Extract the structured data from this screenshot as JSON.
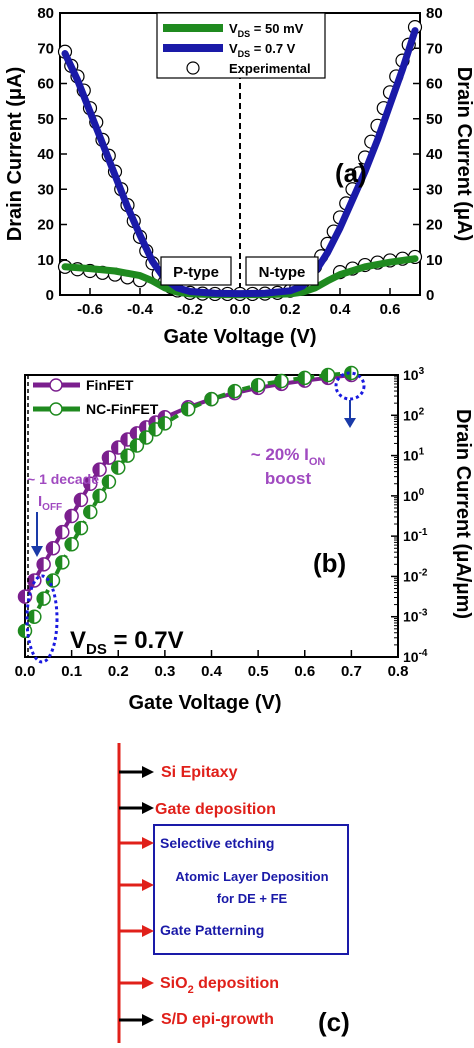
{
  "chart_data": [
    {
      "type": "line",
      "panel_label": "(a)",
      "xlabel": "Gate Voltage (V)",
      "ylabel_left": "Drain Current (μA)",
      "ylabel_right": "Drain Current (μA)",
      "xlim": [
        -0.72,
        0.72
      ],
      "ylim": [
        0,
        80
      ],
      "x_ticks": [
        -0.6,
        -0.4,
        -0.2,
        0.0,
        0.2,
        0.4,
        0.6
      ],
      "x_tick_labels": [
        "-0.6",
        "-0.4",
        "-0.2",
        "0.0",
        "0.2",
        "0.4",
        "0.6"
      ],
      "y_ticks": [
        0,
        10,
        20,
        30,
        40,
        50,
        60,
        70,
        80
      ],
      "y_tick_labels": [
        "0",
        "10",
        "20",
        "30",
        "40",
        "50",
        "60",
        "70",
        "80"
      ],
      "grid": false,
      "legend_position": "top-center",
      "legend": {
        "vds50_main": "V",
        "vds50_sub": "DS",
        "vds50_rest": " = 50 mV",
        "vds07_main": "V",
        "vds07_sub": "DS",
        "vds07_rest": " = 0.7 V",
        "exp": "Experimental"
      },
      "region_labels": {
        "p": "P-type",
        "n": "N-type"
      },
      "colors": {
        "vds50": "#1f8a1f",
        "vds07": "#1a1aa8"
      },
      "series": [
        {
          "name": "VDS = 50 mV",
          "x": [
            -0.7,
            -0.6,
            -0.5,
            -0.4,
            -0.35,
            -0.3,
            -0.25,
            -0.2,
            -0.1,
            0.0,
            0.1,
            0.2,
            0.25,
            0.3,
            0.35,
            0.4,
            0.5,
            0.6,
            0.7
          ],
          "y": [
            8.0,
            7.5,
            6.8,
            5.5,
            4.0,
            2.0,
            0.8,
            0.3,
            0.1,
            0.05,
            0.1,
            0.3,
            0.8,
            2.0,
            4.0,
            5.8,
            8.0,
            9.3,
            10.3
          ]
        },
        {
          "name": "VDS = 0.7 V",
          "x": [
            -0.7,
            -0.65,
            -0.6,
            -0.55,
            -0.5,
            -0.45,
            -0.4,
            -0.35,
            -0.3,
            -0.25,
            -0.2,
            -0.1,
            0.0,
            0.1,
            0.2,
            0.25,
            0.3,
            0.35,
            0.4,
            0.45,
            0.5,
            0.55,
            0.6,
            0.65,
            0.7
          ],
          "y": [
            68.5,
            61,
            52,
            43,
            34,
            25,
            17,
            9.5,
            4.5,
            2,
            1,
            0.5,
            0.4,
            0.5,
            1.2,
            2.5,
            6.5,
            12,
            19,
            27,
            35,
            44,
            54,
            64,
            75
          ]
        },
        {
          "name": "Experimental",
          "x": [
            -0.7,
            -0.675,
            -0.65,
            -0.625,
            -0.6,
            -0.575,
            -0.55,
            -0.525,
            -0.5,
            -0.475,
            -0.45,
            -0.425,
            -0.4,
            -0.375,
            -0.35,
            -0.325,
            -0.3,
            -0.275,
            -0.25,
            -0.2,
            -0.15,
            -0.1,
            -0.05,
            0.0,
            0.05,
            0.1,
            0.15,
            0.2,
            0.225,
            0.25,
            0.275,
            0.3,
            0.325,
            0.35,
            0.375,
            0.4,
            0.425,
            0.45,
            0.475,
            0.5,
            0.525,
            0.55,
            0.575,
            0.6,
            0.625,
            0.65,
            0.675,
            0.7,
            -0.7,
            -0.65,
            -0.6,
            -0.55,
            -0.5,
            -0.45,
            -0.4,
            0.4,
            0.45,
            0.5,
            0.55,
            0.6,
            0.65,
            0.7
          ],
          "y": [
            69,
            65,
            62,
            58,
            53,
            49,
            44,
            39.5,
            35,
            30,
            25.5,
            21,
            16.5,
            12.5,
            9,
            6,
            3.8,
            2.2,
            1.3,
            0.6,
            0.4,
            0.3,
            0.3,
            0.3,
            0.3,
            0.4,
            0.6,
            1.2,
            2,
            3.5,
            5.5,
            8,
            11,
            14.5,
            18,
            22,
            26,
            30,
            34.5,
            39,
            43.5,
            48,
            53,
            57.5,
            62,
            66.5,
            71,
            76,
            8,
            7.3,
            6.8,
            6.3,
            5.8,
            5.0,
            4.2,
            6.5,
            7.5,
            8.5,
            9.2,
            9.8,
            10.3,
            10.8
          ]
        }
      ]
    },
    {
      "type": "line",
      "panel_label": "(b)",
      "xlabel": "Gate Voltage (V)",
      "ylabel_right": "Drain Current (μA/μm)",
      "xlim": [
        0.0,
        0.8
      ],
      "ylim_log10": [
        -4,
        3
      ],
      "log_scale_y": true,
      "x_ticks": [
        0.0,
        0.1,
        0.2,
        0.3,
        0.4,
        0.5,
        0.6,
        0.7,
        0.8
      ],
      "x_tick_labels": [
        "0.0",
        "0.1",
        "0.2",
        "0.3",
        "0.4",
        "0.5",
        "0.6",
        "0.7",
        "0.8"
      ],
      "y_tick_exponents": [
        "-4",
        "-3",
        "-2",
        "-1",
        "0",
        "1",
        "2",
        "3"
      ],
      "y_tick_base": "10",
      "grid": false,
      "legend_position": "top-left",
      "colors": {
        "finfet": "#7b1f8e",
        "ncfinfet": "#1f8a1f"
      },
      "annotations": {
        "decade_line1": "~ 1 decade",
        "ioff_main": "I",
        "ioff_sub": "OFF",
        "ion_prefix": "~ 20% I",
        "ion_sub": "ON",
        "ion_line2": "boost",
        "vds_main": "V",
        "vds_sub": "DS",
        "vds_rest": " = 0.7V"
      },
      "series": [
        {
          "name": "FinFET",
          "x": [
            0.0,
            0.02,
            0.04,
            0.06,
            0.08,
            0.1,
            0.12,
            0.14,
            0.16,
            0.18,
            0.2,
            0.22,
            0.24,
            0.26,
            0.28,
            0.3,
            0.35,
            0.4,
            0.45,
            0.5,
            0.55,
            0.6,
            0.65,
            0.7
          ],
          "y_log10": [
            -2.5,
            -2.1,
            -1.7,
            -1.3,
            -0.9,
            -0.5,
            -0.1,
            0.3,
            0.65,
            0.95,
            1.2,
            1.4,
            1.55,
            1.7,
            1.82,
            1.95,
            2.2,
            2.4,
            2.55,
            2.68,
            2.78,
            2.86,
            2.93,
            3.0
          ]
        },
        {
          "name": "NC-FinFET",
          "x": [
            0.0,
            0.02,
            0.04,
            0.06,
            0.08,
            0.1,
            0.12,
            0.14,
            0.16,
            0.18,
            0.2,
            0.22,
            0.24,
            0.26,
            0.28,
            0.3,
            0.35,
            0.4,
            0.45,
            0.5,
            0.55,
            0.6,
            0.65,
            0.7
          ],
          "y_log10": [
            -3.35,
            -3.0,
            -2.55,
            -2.1,
            -1.65,
            -1.2,
            -0.8,
            -0.4,
            0.0,
            0.35,
            0.7,
            1.0,
            1.25,
            1.45,
            1.65,
            1.8,
            2.15,
            2.4,
            2.6,
            2.75,
            2.85,
            2.93,
            3.0,
            3.05
          ]
        }
      ]
    }
  ],
  "flow": {
    "label": "(c)",
    "colors": {
      "red_text": "#e0201a",
      "blue_text": "#1a1aa8",
      "black_arrow": "#000000",
      "red_arrow": "#e0201a",
      "box": "#1a1aa8"
    },
    "steps": [
      {
        "text": "Si Epitaxy"
      },
      {
        "text": "Gate deposition"
      },
      {
        "text": "Selective etching"
      },
      {
        "text": "Atomic Layer Deposition"
      },
      {
        "text": "for DE + FE"
      },
      {
        "text": "Gate Patterning"
      },
      {
        "main": "SiO",
        "sub": "2",
        "rest": " deposition"
      },
      {
        "text": "S/D epi-growth"
      }
    ]
  }
}
